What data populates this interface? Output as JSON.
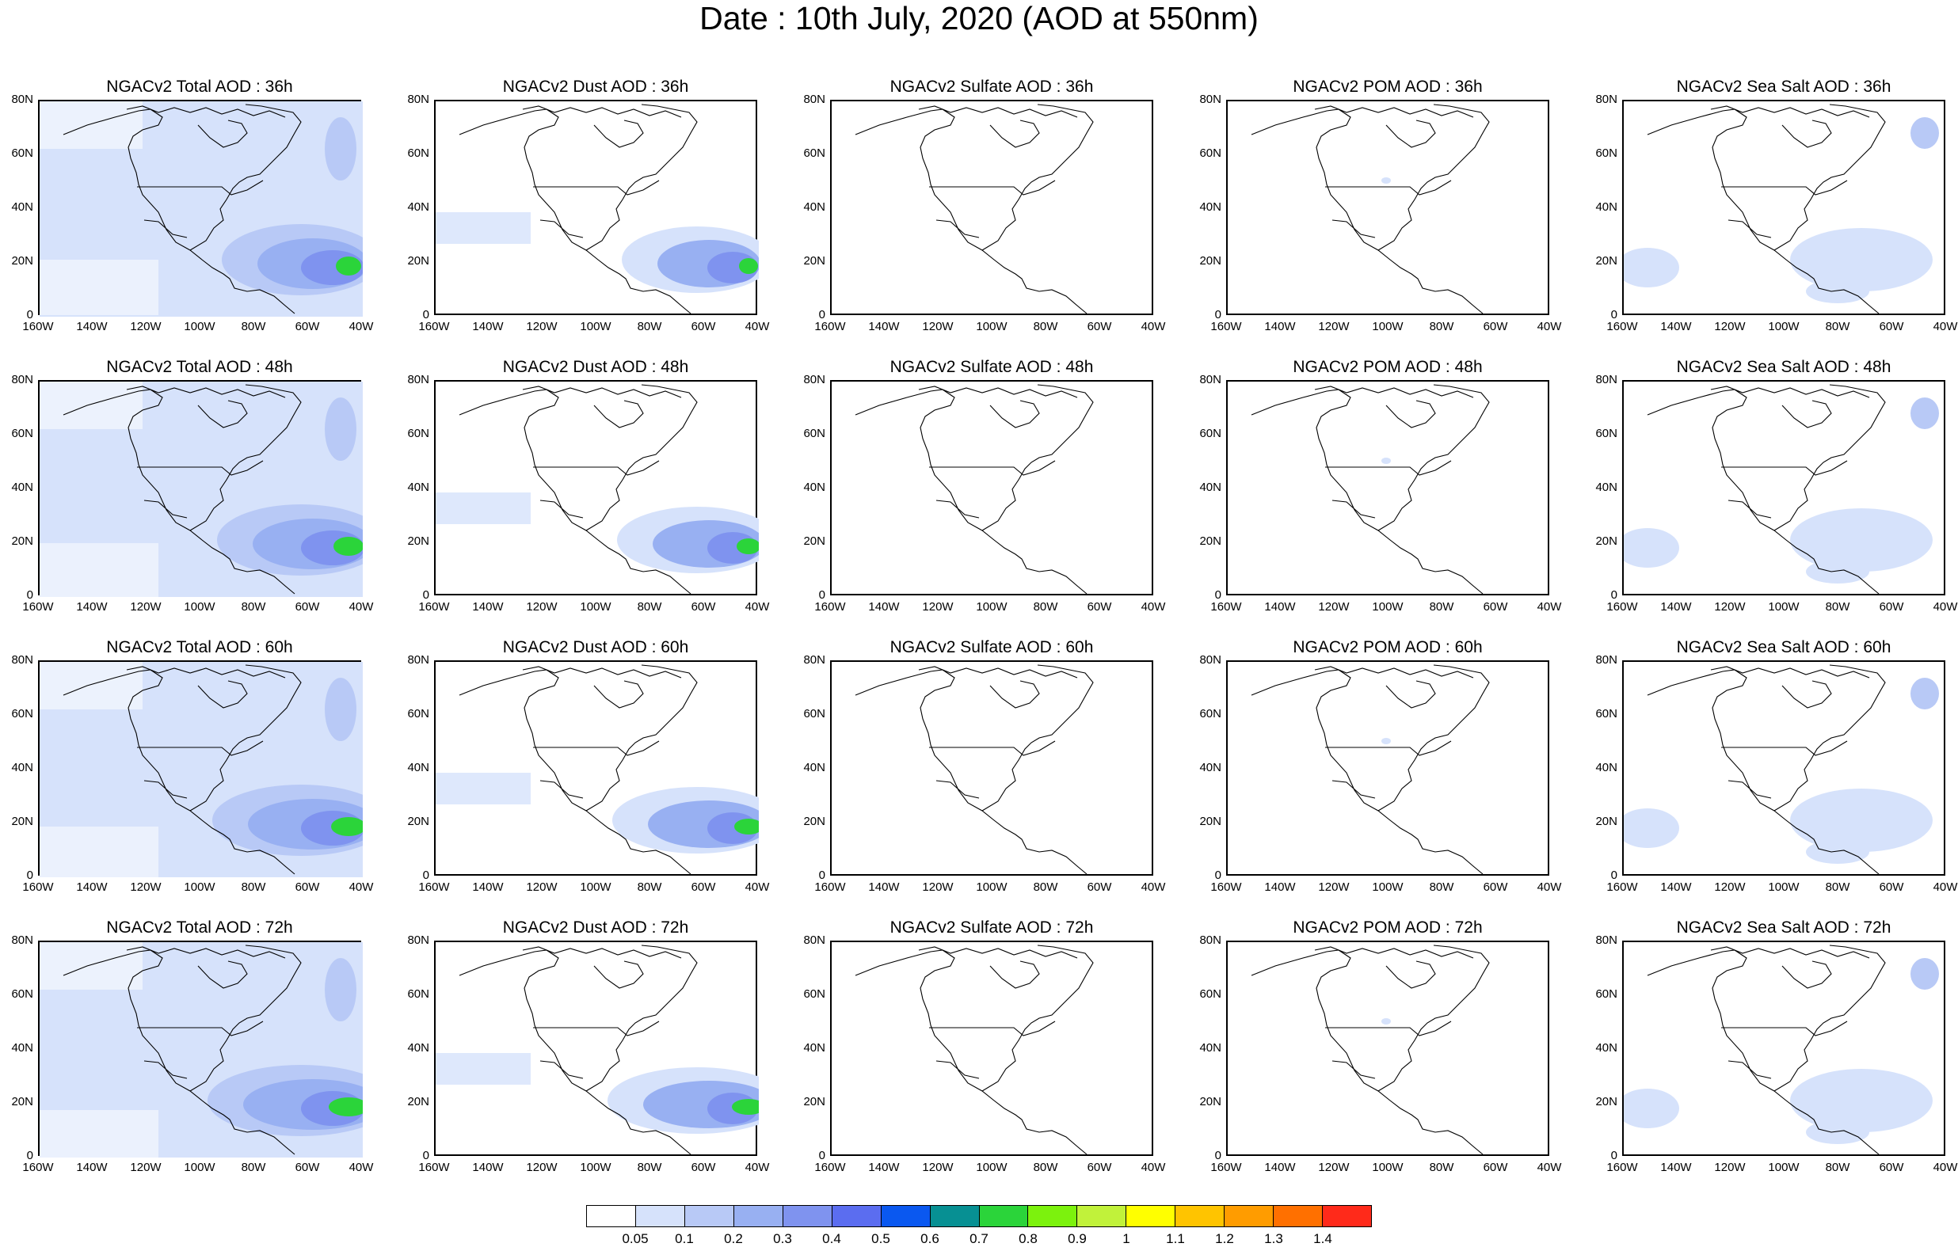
{
  "page": {
    "title": "Date : 10th July, 2020 (AOD at 550nm)"
  },
  "axes": {
    "lat_labels": [
      "80N",
      "60N",
      "40N",
      "20N",
      "0"
    ],
    "lon_labels": [
      "160W",
      "140W",
      "120W",
      "100W",
      "80W",
      "60W",
      "40W"
    ]
  },
  "panels": [
    [
      {
        "title": "NGACv2 Total AOD : 36h",
        "variable": "Total AOD",
        "lead": "36h"
      },
      {
        "title": "NGACv2 Dust AOD : 36h",
        "variable": "Dust AOD",
        "lead": "36h"
      },
      {
        "title": "NGACv2 Sulfate AOD : 36h",
        "variable": "Sulfate AOD",
        "lead": "36h"
      },
      {
        "title": "NGACv2 POM AOD : 36h",
        "variable": "POM AOD",
        "lead": "36h"
      },
      {
        "title": "NGACv2 Sea Salt AOD : 36h",
        "variable": "Sea Salt AOD",
        "lead": "36h"
      }
    ],
    [
      {
        "title": "NGACv2 Total AOD : 48h",
        "variable": "Total AOD",
        "lead": "48h"
      },
      {
        "title": "NGACv2 Dust AOD : 48h",
        "variable": "Dust AOD",
        "lead": "48h"
      },
      {
        "title": "NGACv2 Sulfate AOD : 48h",
        "variable": "Sulfate AOD",
        "lead": "48h"
      },
      {
        "title": "NGACv2 POM AOD : 48h",
        "variable": "POM AOD",
        "lead": "48h"
      },
      {
        "title": "NGACv2 Sea Salt AOD : 48h",
        "variable": "Sea Salt AOD",
        "lead": "48h"
      }
    ],
    [
      {
        "title": "NGACv2 Total AOD : 60h",
        "variable": "Total AOD",
        "lead": "60h"
      },
      {
        "title": "NGACv2 Dust AOD : 60h",
        "variable": "Dust AOD",
        "lead": "60h"
      },
      {
        "title": "NGACv2 Sulfate AOD : 60h",
        "variable": "Sulfate AOD",
        "lead": "60h"
      },
      {
        "title": "NGACv2 POM AOD : 60h",
        "variable": "POM AOD",
        "lead": "60h"
      },
      {
        "title": "NGACv2 Sea Salt AOD : 60h",
        "variable": "Sea Salt AOD",
        "lead": "60h"
      }
    ],
    [
      {
        "title": "NGACv2 Total AOD : 72h",
        "variable": "Total AOD",
        "lead": "72h"
      },
      {
        "title": "NGACv2 Dust AOD : 72h",
        "variable": "Dust AOD",
        "lead": "72h"
      },
      {
        "title": "NGACv2 Sulfate AOD : 72h",
        "variable": "Sulfate AOD",
        "lead": "72h"
      },
      {
        "title": "NGACv2 POM AOD : 72h",
        "variable": "POM AOD",
        "lead": "72h"
      },
      {
        "title": "NGACv2 Sea Salt  AOD : 72h",
        "variable": "Sea Salt AOD",
        "lead": "72h"
      }
    ]
  ],
  "colorbar": {
    "colors": [
      "#ffffff",
      "#d6e2fb",
      "#b8c9f6",
      "#98b0f2",
      "#7f93ef",
      "#5b6df0",
      "#0a58f0",
      "#079093",
      "#2bd43a",
      "#7cf20d",
      "#c1f23a",
      "#ffff00",
      "#ffc400",
      "#ff9c00",
      "#ff7000",
      "#ff2a1a"
    ],
    "labels": [
      "0.05",
      "0.1",
      "0.2",
      "0.3",
      "0.4",
      "0.5",
      "0.6",
      "0.7",
      "0.8",
      "0.9",
      "1",
      "1.1",
      "1.2",
      "1.3",
      "1.4"
    ]
  }
}
